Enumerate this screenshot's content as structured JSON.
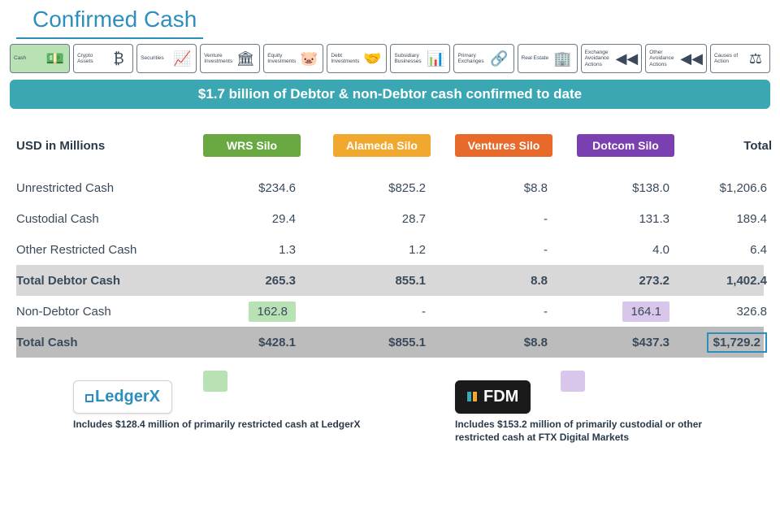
{
  "title": "Confirmed Cash",
  "banner": "$1.7 billion of Debtor & non-Debtor cash confirmed to date",
  "tabs": [
    {
      "label": "Cash",
      "icon": "💵",
      "active": true
    },
    {
      "label": "Crypto Assets",
      "icon": "₿",
      "active": false
    },
    {
      "label": "Securities",
      "icon": "📈",
      "active": false
    },
    {
      "label": "Venture Investments",
      "icon": "🏛",
      "active": false
    },
    {
      "label": "Equity Investments",
      "icon": "🐷",
      "active": false
    },
    {
      "label": "Debt Investments",
      "icon": "🤝",
      "active": false
    },
    {
      "label": "Subsidiary Businesses",
      "icon": "📊",
      "active": false
    },
    {
      "label": "Primary Exchanges",
      "icon": "🔗",
      "active": false
    },
    {
      "label": "Real Estate",
      "icon": "🏢",
      "active": false
    },
    {
      "label": "Exchange Avoidance Actions",
      "icon": "◀◀",
      "active": false
    },
    {
      "label": "Other Avoidance Actions",
      "icon": "◀◀",
      "active": false
    },
    {
      "label": "Causes of Action",
      "icon": "⚖",
      "active": false
    }
  ],
  "table": {
    "currency_label": "USD in Millions",
    "silos": [
      {
        "name": "WRS Silo",
        "color": "#6aa842"
      },
      {
        "name": "Alameda Silo",
        "color": "#f0a82e"
      },
      {
        "name": "Ventures Silo",
        "color": "#e86a2a"
      },
      {
        "name": "Dotcom Silo",
        "color": "#7a3fb0"
      }
    ],
    "total_label": "Total",
    "rows": [
      {
        "label": "Unrestricted Cash",
        "cells": [
          "$234.6",
          "$825.2",
          "$8.8",
          "$138.0",
          "$1,206.6"
        ],
        "type": "data"
      },
      {
        "label": "Custodial Cash",
        "cells": [
          "29.4",
          "28.7",
          "-",
          "131.3",
          "189.4"
        ],
        "type": "data"
      },
      {
        "label": "Other Restricted Cash",
        "cells": [
          "1.3",
          "1.2",
          "-",
          "4.0",
          "6.4"
        ],
        "type": "data"
      },
      {
        "label": "Total Debtor Cash",
        "cells": [
          "265.3",
          "855.1",
          "8.8",
          "273.2",
          "1,402.4"
        ],
        "type": "subtotal"
      },
      {
        "label": "Non-Debtor Cash",
        "cells": [
          "162.8",
          "-",
          "-",
          "164.1",
          "326.8"
        ],
        "type": "data",
        "highlights": {
          "0": "green",
          "3": "purple"
        }
      },
      {
        "label": "Total Cash",
        "cells": [
          "$428.1",
          "$855.1",
          "$8.8",
          "$437.3",
          "$1,729.2"
        ],
        "type": "total",
        "grand_total_col": 4
      }
    ]
  },
  "footnotes": {
    "ledgerx": {
      "logo_text": "LedgerX",
      "swatch_color": "#b9e2b4",
      "text": "Includes $128.4 million of primarily restricted cash at LedgerX"
    },
    "fdm": {
      "logo_text": "FDM",
      "bar_colors": [
        "#3aa7b3",
        "#f0a82e"
      ],
      "swatch_color": "#d8c7ea",
      "text": "Includes $153.2 million of primarily custodial or other restricted cash at FTX Digital Markets"
    }
  },
  "colors": {
    "title": "#2d8fbd",
    "banner_bg": "#3aa7b3",
    "subtotal_bg": "#d8d8d8",
    "total_bg": "#bcbcbc",
    "hl_green": "#b9e2b4",
    "hl_purple": "#d8c7ea"
  }
}
